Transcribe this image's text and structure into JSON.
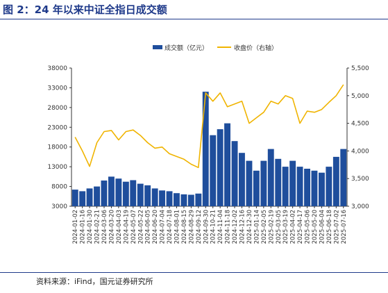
{
  "figure": {
    "title": "图 2：24 年以来中证全指日成交额",
    "source": "资料来源：iFind，国元证券研究所"
  },
  "chart_data": {
    "type": "bar+line",
    "title": "",
    "legend": {
      "placement": "top-center",
      "entries": [
        "成交额（亿元）",
        "收盘价（右轴）"
      ]
    },
    "colors": {
      "volume": "#1f4e9c",
      "close": "#f0b400",
      "axis": "#333333"
    },
    "y_left": {
      "min": 3000,
      "max": 38000,
      "ticks": [
        "38000",
        "33000",
        "28000",
        "23000",
        "18000",
        "13000",
        "8000",
        "3000"
      ]
    },
    "y_right": {
      "min": 3000,
      "max": 5500,
      "ticks": [
        "5,500",
        "5,000",
        "4,500",
        "4,000",
        "3,500",
        "3,000"
      ]
    },
    "x_tick_labels": [
      "2024-01-02",
      "2024-01-16",
      "2024-01-30",
      "2024-02-21",
      "2024-03-06",
      "2024-03-20",
      "2024-04-03",
      "2024-04-19",
      "2024-05-07",
      "2024-05-22",
      "2024-06-05",
      "2024-06-20",
      "2024-07-04",
      "2024-07-18",
      "2024-08-01",
      "2024-08-15",
      "2024-08-29",
      "2024-09-12",
      "2024-09-30",
      "2024-10-21",
      "2024-11-04",
      "2024-11-18",
      "2024-12-02",
      "2024-12-16",
      "2024-12-30",
      "2025-01-14",
      "2025-02-05",
      "2025-02-19",
      "2025-03-05",
      "2025-03-19",
      "2025-04-02",
      "2025-04-17",
      "2025-05-06",
      "2025-05-20",
      "2025-06-04",
      "2025-06-18",
      "2025-07-02",
      "2025-07-16"
    ],
    "series": [
      {
        "name": "成交额（亿元）",
        "type": "bar",
        "axis": "left",
        "points": [
          [
            0,
            7200
          ],
          [
            1,
            6800
          ],
          [
            2,
            7500
          ],
          [
            3,
            8000
          ],
          [
            4,
            9500
          ],
          [
            5,
            10500
          ],
          [
            6,
            10000
          ],
          [
            7,
            9200
          ],
          [
            8,
            9600
          ],
          [
            9,
            8700
          ],
          [
            10,
            8300
          ],
          [
            11,
            7500
          ],
          [
            12,
            7000
          ],
          [
            13,
            6800
          ],
          [
            14,
            6300
          ],
          [
            15,
            6000
          ],
          [
            16,
            5900
          ],
          [
            17,
            6200
          ],
          [
            18,
            32000
          ],
          [
            19,
            21000
          ],
          [
            20,
            22500
          ],
          [
            21,
            24000
          ],
          [
            22,
            19500
          ],
          [
            23,
            16500
          ],
          [
            24,
            14500
          ],
          [
            25,
            12000
          ],
          [
            26,
            14500
          ],
          [
            27,
            17500
          ],
          [
            28,
            15000
          ],
          [
            29,
            13000
          ],
          [
            30,
            14500
          ],
          [
            31,
            13000
          ],
          [
            32,
            12500
          ],
          [
            33,
            12000
          ],
          [
            34,
            11500
          ],
          [
            35,
            13000
          ],
          [
            36,
            15500
          ],
          [
            37,
            17500
          ]
        ]
      },
      {
        "name": "收盘价（右轴）",
        "type": "line",
        "axis": "right",
        "points": [
          [
            0,
            4250
          ],
          [
            1,
            4000
          ],
          [
            2,
            3720
          ],
          [
            3,
            4150
          ],
          [
            4,
            4350
          ],
          [
            5,
            4370
          ],
          [
            6,
            4200
          ],
          [
            7,
            4350
          ],
          [
            8,
            4380
          ],
          [
            9,
            4280
          ],
          [
            10,
            4150
          ],
          [
            11,
            4050
          ],
          [
            12,
            4070
          ],
          [
            13,
            3950
          ],
          [
            14,
            3900
          ],
          [
            15,
            3850
          ],
          [
            16,
            3760
          ],
          [
            17,
            3700
          ],
          [
            18,
            5050
          ],
          [
            19,
            4900
          ],
          [
            20,
            5050
          ],
          [
            21,
            4800
          ],
          [
            22,
            4850
          ],
          [
            23,
            4900
          ],
          [
            24,
            4500
          ],
          [
            25,
            4600
          ],
          [
            26,
            4700
          ],
          [
            27,
            4900
          ],
          [
            28,
            4850
          ],
          [
            29,
            5000
          ],
          [
            30,
            4950
          ],
          [
            31,
            4500
          ],
          [
            32,
            4720
          ],
          [
            33,
            4700
          ],
          [
            34,
            4750
          ],
          [
            35,
            4880
          ],
          [
            36,
            5000
          ],
          [
            37,
            5200
          ]
        ]
      }
    ]
  }
}
